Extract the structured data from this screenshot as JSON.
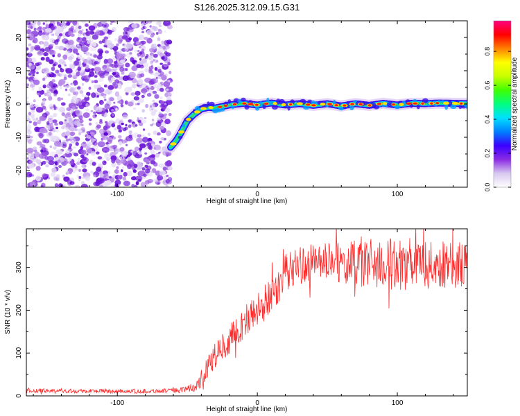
{
  "title": "S126.2025.312.09.15.G31",
  "colors": {
    "snr_line": "#ff2a2a",
    "scatter": "#8a2be2",
    "frame": "#000000"
  },
  "chart_data": [
    {
      "id": "spectrogram",
      "type": "heatmap",
      "title": "S126.2025.312.09.15.G31",
      "xlabel": "Height of straight line (km)",
      "ylabel": "Frequency (Hz)",
      "xlim": [
        -165,
        150
      ],
      "ylim": [
        -25,
        25
      ],
      "xticks": [
        -100,
        0,
        100
      ],
      "yticks": [
        -20,
        -10,
        0,
        10,
        20
      ],
      "noise_region_x": [
        -165,
        -50
      ],
      "track": {
        "x": [
          -62,
          -58,
          -55,
          -50,
          -45,
          -40,
          -35,
          -30,
          -20,
          -10,
          0,
          10,
          20,
          30,
          40,
          50,
          60,
          70,
          80,
          90,
          100,
          110,
          120,
          130,
          140,
          150
        ],
        "y": [
          -13,
          -11,
          -9,
          -5,
          -3,
          -1.5,
          -1,
          -1.2,
          -0.3,
          0.2,
          -0.3,
          0.3,
          -0.3,
          0.1,
          -0.4,
          0.1,
          -0.6,
          0.1,
          -0.4,
          0.2,
          -0.3,
          0.2,
          0.1,
          0.3,
          0.2,
          0.1
        ]
      },
      "colorbar": {
        "label": "Normalized spectral amplitude",
        "ticks": [
          0.0,
          0.2,
          0.4,
          0.6,
          0.8
        ],
        "tick_labels": [
          "0.0",
          "0.2",
          "0.4",
          "0.6",
          "0.8"
        ],
        "range": [
          0,
          0.98
        ],
        "stops": [
          "#ffffff",
          "#d8c8f0",
          "#8a2be2",
          "#3a00ff",
          "#0080ff",
          "#00e0ff",
          "#00ff80",
          "#40ff00",
          "#c8ff00",
          "#ffff00",
          "#ff8000",
          "#ff0000",
          "#ff0080"
        ]
      }
    },
    {
      "id": "snr",
      "type": "line",
      "xlabel": "Height of straight line (km)",
      "ylabel": "SNR (10 * v/v)",
      "xlim": [
        -165,
        150
      ],
      "ylim": [
        0,
        390
      ],
      "xticks": [
        -100,
        0,
        100
      ],
      "yticks": [
        0,
        100,
        200,
        300
      ],
      "series": [
        {
          "name": "SNR",
          "x": [
            -165,
            -140,
            -110,
            -80,
            -60,
            -50,
            -45,
            -40,
            -35,
            -30,
            -25,
            -20,
            -15,
            -10,
            -5,
            0,
            5,
            10,
            15,
            20,
            25,
            30,
            40,
            50,
            60,
            70,
            80,
            90,
            100,
            110,
            120,
            130,
            140,
            150
          ],
          "values": [
            12,
            12,
            11,
            11,
            12,
            16,
            20,
            40,
            70,
            95,
            115,
            130,
            150,
            170,
            185,
            200,
            215,
            235,
            260,
            285,
            300,
            305,
            310,
            312,
            310,
            308,
            310,
            308,
            307,
            306,
            305,
            306,
            305,
            305
          ],
          "noise_amplitude": [
            5,
            5,
            5,
            5,
            5,
            8,
            12,
            20,
            25,
            30,
            30,
            35,
            35,
            40,
            40,
            40,
            45,
            45,
            45,
            45,
            45,
            45,
            45,
            45,
            50,
            55,
            60,
            60,
            60,
            60,
            55,
            55,
            55,
            55
          ]
        }
      ]
    }
  ]
}
